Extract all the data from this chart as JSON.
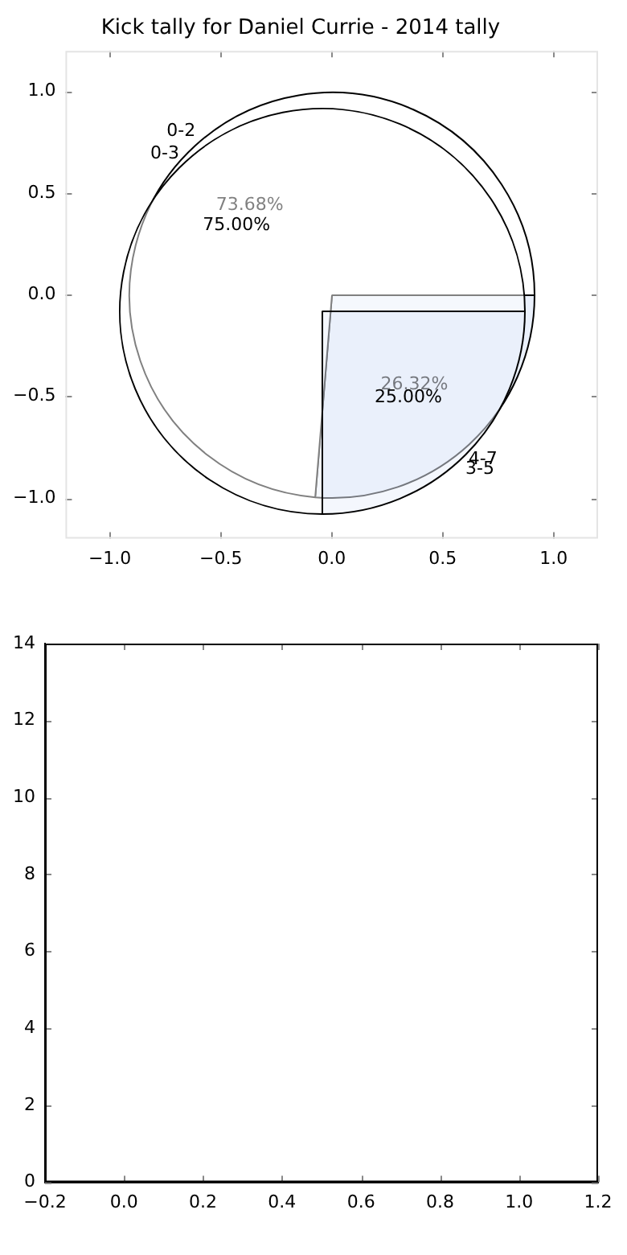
{
  "chart_data": [
    {
      "type": "scatter",
      "title": "Kick tally for Daniel Currie - 2014 tally",
      "xlim": [
        -1.2,
        1.2
      ],
      "xticks": [
        {
          "value": -1,
          "label": "−1.0"
        },
        {
          "value": -0.5,
          "label": "−0.5"
        },
        {
          "value": 0,
          "label": "0.0"
        },
        {
          "value": 0.5,
          "label": "0.5"
        },
        {
          "value": 1,
          "label": "1.0"
        }
      ],
      "ylim": [
        -1.2,
        1.2
      ],
      "yticks": [
        {
          "value": -1,
          "label": "−1.0"
        },
        {
          "value": -0.5,
          "label": "−0.5"
        },
        {
          "value": 0,
          "label": "0.0"
        },
        {
          "value": 0.5,
          "label": "0.5"
        },
        {
          "value": 1,
          "label": "1.0"
        }
      ]
    },
    {
      "type": "pie",
      "categories": [
        "0-2",
        "4-7"
      ],
      "values": [
        73.68,
        26.32
      ],
      "colors": [
        "#ffffff",
        "#eaf0fb"
      ],
      "value_labels": [
        "73.68%",
        "26.32%"
      ]
    },
    {
      "type": "pie",
      "categories": [
        "0-3",
        "3-5"
      ],
      "values": [
        75.0,
        25.0
      ],
      "colors": [
        "#ffffff",
        "#eaf0fb"
      ],
      "value_labels": [
        "75.00%",
        "25.00%"
      ]
    },
    {
      "type": "scatter",
      "xlim": [
        -0.2,
        1.2
      ],
      "xticks": [
        {
          "value": -0.2,
          "label": "−0.2"
        },
        {
          "value": 0,
          "label": "0.0"
        },
        {
          "value": 0.2,
          "label": "0.2"
        },
        {
          "value": 0.4,
          "label": "0.4"
        },
        {
          "value": 0.6,
          "label": "0.6"
        },
        {
          "value": 0.8,
          "label": "0.8"
        },
        {
          "value": 1,
          "label": "1.0"
        },
        {
          "value": 1.2,
          "label": "1.2"
        }
      ],
      "ylim": [
        0,
        14
      ],
      "yticks": [
        0,
        2,
        4,
        6,
        8,
        10,
        12,
        14
      ]
    }
  ]
}
